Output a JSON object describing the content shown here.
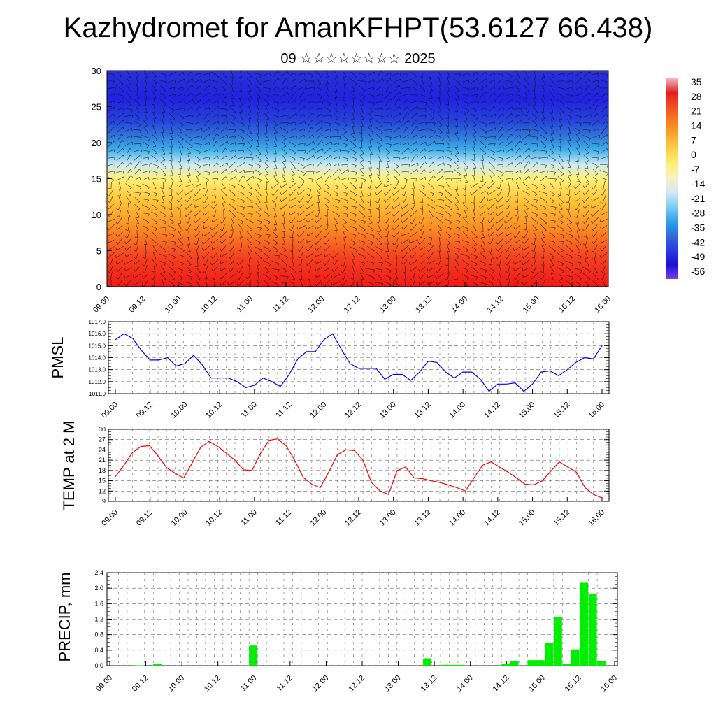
{
  "title": "Kazhydromet for AmanKFHPT(53.6127 66.438)",
  "subtitle": "09 ☆☆☆☆☆☆☆☆ 2025",
  "colors": {
    "pmsl": "#0000ff",
    "temp": "#ff0000",
    "precip": "#00ee00"
  },
  "chart_data": [
    {
      "type": "heatmap",
      "title": "",
      "x_ticks": [
        "09.00",
        "09.12",
        "10.00",
        "10.12",
        "11.00",
        "11.12",
        "12.00",
        "12.12",
        "13.00",
        "13.12",
        "14.00",
        "14.12",
        "15.00",
        "15.12",
        "16.00"
      ],
      "y_ticks": [
        "0",
        "5",
        "10",
        "15",
        "20",
        "25",
        "30"
      ],
      "ylim": [
        0,
        30
      ],
      "colorbar_labels": [
        "35",
        "28",
        "21",
        "14",
        "7",
        "0",
        "-7",
        "-14",
        "-21",
        "-28",
        "-35",
        "-42",
        "-49",
        "-56"
      ],
      "colorbar_colors": [
        "#f2b8bb",
        "#e02020",
        "#f05020",
        "#f87c20",
        "#fca830",
        "#ffd24a",
        "#fff07a",
        "#f4f1c2",
        "#cde9f5",
        "#7ccdf4",
        "#2ea0e6",
        "#2f6bd8",
        "#2a3be0",
        "#1b10d8",
        "#7a3cf0"
      ],
      "height_colors": [
        {
          "y": 0,
          "color": "#f01818"
        },
        {
          "y": 4,
          "color": "#f44020"
        },
        {
          "y": 8,
          "color": "#fa8a24"
        },
        {
          "y": 12,
          "color": "#ffc63a"
        },
        {
          "y": 15,
          "color": "#fff07a"
        },
        {
          "y": 17,
          "color": "#cde9f5"
        },
        {
          "y": 19,
          "color": "#3fb0ea"
        },
        {
          "y": 21,
          "color": "#2f74da"
        },
        {
          "y": 23,
          "color": "#2743dc"
        },
        {
          "y": 26,
          "color": "#2222e0"
        },
        {
          "y": 30,
          "color": "#2a30d8"
        }
      ]
    },
    {
      "type": "line",
      "ylabel": "PMSL",
      "ylim": [
        1011.0,
        1017.0
      ],
      "y_ticks": [
        "1011.0",
        "1012.0",
        "1013.0",
        "1014.0",
        "1015.0",
        "1016.0",
        "1017.0"
      ],
      "x_ticks": [
        "09.00",
        "09.12",
        "10.00",
        "10.12",
        "11.00",
        "11.12",
        "12.00",
        "12.12",
        "13.00",
        "13.12",
        "14.00",
        "14.12",
        "15.00",
        "15.12",
        "16.00"
      ],
      "series": [
        {
          "values": [
            1015.5,
            1016.0,
            1015.6,
            1014.6,
            1013.8,
            1013.8,
            1014.0,
            1013.3,
            1013.5,
            1014.2,
            1013.4,
            1012.3,
            1012.3,
            1012.3,
            1012.0,
            1011.5,
            1011.7,
            1012.3,
            1012.0,
            1011.6,
            1012.6,
            1013.9,
            1014.5,
            1014.5,
            1015.5,
            1016.0,
            1014.7,
            1013.5,
            1013.1,
            1013.1,
            1013.1,
            1012.2,
            1012.6,
            1012.6,
            1012.1,
            1012.8,
            1013.7,
            1013.6,
            1012.8,
            1012.3,
            1012.8,
            1012.8,
            1012.2,
            1011.2,
            1011.8,
            1011.8,
            1011.9,
            1011.2,
            1011.8,
            1012.8,
            1012.9,
            1012.5,
            1013.0,
            1013.6,
            1014.0,
            1013.9,
            1015.0
          ]
        }
      ]
    },
    {
      "type": "line",
      "ylabel": "TEMP at 2 M",
      "ylim": [
        9,
        30
      ],
      "y_ticks": [
        "9",
        "12",
        "15",
        "18",
        "21",
        "24",
        "27",
        "30"
      ],
      "x_ticks": [
        "09.00",
        "09.12",
        "10.00",
        "10.12",
        "11.00",
        "11.12",
        "12.00",
        "12.12",
        "13.00",
        "13.12",
        "14.00",
        "14.12",
        "15.00",
        "15.12",
        "16.00"
      ],
      "series": [
        {
          "values": [
            16.2,
            19.5,
            23.2,
            25.0,
            25.2,
            22.2,
            18.8,
            17.2,
            15.8,
            20.2,
            24.8,
            26.5,
            25.0,
            23.0,
            21.0,
            18.2,
            18.0,
            23.0,
            26.8,
            27.2,
            25.2,
            21.0,
            16.0,
            14.0,
            13.0,
            17.6,
            22.6,
            24.0,
            23.8,
            21.0,
            14.5,
            12.0,
            11.0,
            18.0,
            19.0,
            15.8,
            15.6,
            15.0,
            14.5,
            13.8,
            13.0,
            12.0,
            15.8,
            19.5,
            20.5,
            19.0,
            17.5,
            15.8,
            14.0,
            13.8,
            15.0,
            17.8,
            20.5,
            19.0,
            17.5,
            13.0,
            11.0,
            10.0
          ]
        }
      ]
    },
    {
      "type": "bar",
      "ylabel": "PRECIP, mm",
      "ylim": [
        0,
        2.4
      ],
      "y_ticks": [
        "0.0",
        "0.4",
        "0.8",
        "1.2",
        "1.6",
        "2.0",
        "2.4"
      ],
      "x_ticks": [
        "09.00",
        "09.12",
        "10.00",
        "10.12",
        "11.00",
        "11.12",
        "12.00",
        "12.12",
        "13.00",
        "13.12",
        "14.00",
        "14.12",
        "15.00",
        "15.12",
        "16.00"
      ],
      "values": [
        0,
        0,
        0,
        0.01,
        0,
        0.05,
        0,
        0,
        0,
        0,
        0,
        0,
        0,
        0,
        0,
        0,
        0.52,
        0,
        0,
        0,
        0,
        0,
        0,
        0,
        0,
        0,
        0,
        0,
        0,
        0,
        0,
        0,
        0,
        0,
        0,
        0,
        0.19,
        0,
        0.02,
        0.02,
        0.02,
        0,
        0,
        0,
        0,
        0.05,
        0.12,
        0,
        0.14,
        0.14,
        0.58,
        1.25,
        0.05,
        0.42,
        2.14,
        1.85,
        0.12,
        0
      ]
    }
  ]
}
